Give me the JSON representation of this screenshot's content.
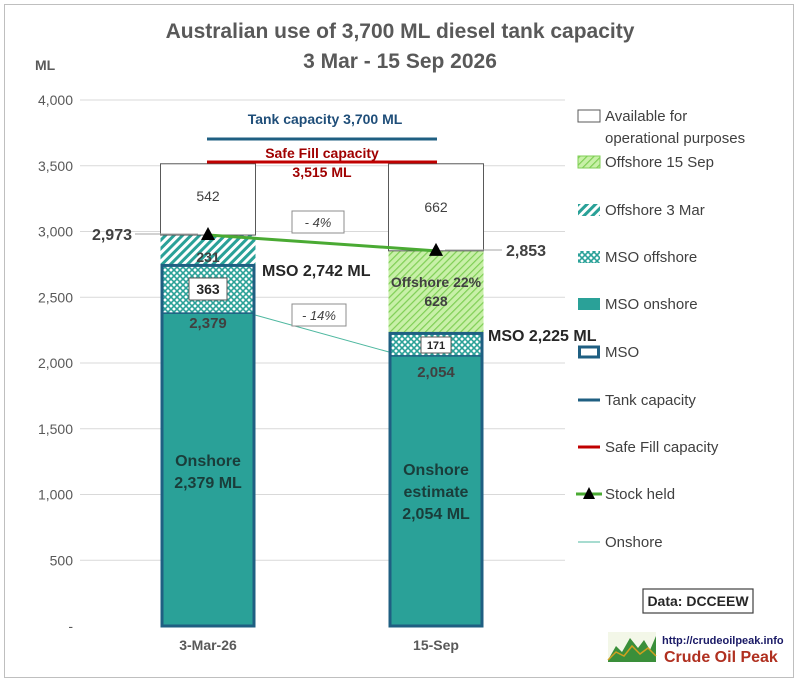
{
  "chart_data": {
    "type": "bar",
    "title_line1": "Australian use of 3,700 ML diesel tank capacity",
    "title_line2": "3 Mar - 15 Sep 2026",
    "ylabel": "ML",
    "ylim": [
      0,
      4000
    ],
    "yticks": [
      "-",
      "500",
      "1,000",
      "1,500",
      "2,000",
      "2,500",
      "3,000",
      "3,500",
      "4,000"
    ],
    "ytick_values": [
      0,
      500,
      1000,
      1500,
      2000,
      2500,
      3000,
      3500,
      4000
    ],
    "categories": [
      "3-Mar-26",
      "15-Sep"
    ],
    "grid": true,
    "legend_position": "right",
    "series": [
      {
        "name": "MSO onshore",
        "values": [
          2379,
          2054
        ]
      },
      {
        "name": "MSO offshore",
        "values": [
          363,
          171
        ]
      },
      {
        "name": "Offshore 3 Mar",
        "values": [
          231,
          0
        ]
      },
      {
        "name": "Offshore 15 Sep",
        "values": [
          0,
          628
        ]
      },
      {
        "name": "Available for operational purposes",
        "values": [
          542,
          662
        ]
      }
    ],
    "stock_held": [
      2973,
      2853
    ],
    "tank_capacity": 3700,
    "safe_fill_capacity": 3515,
    "mso_totals": [
      2742,
      2225
    ],
    "labels": {
      "bar1_onshore_line1": "Onshore",
      "bar1_onshore_line2": "2,379 ML",
      "bar2_onshore_line1": "Onshore",
      "bar2_onshore_line2": "estimate",
      "bar2_onshore_line3": "2,054 ML",
      "bar1_onshore_value": "2,379",
      "bar2_onshore_value": "2,054",
      "bar1_mso_offshore": "363",
      "bar2_mso_offshore": "171",
      "bar1_offshore": "231",
      "bar2_offshore_line1": "Offshore 22%",
      "bar2_offshore_line2": "628",
      "bar1_available": "542",
      "bar2_available": "662",
      "bar1_stock": "2,973",
      "bar2_stock": "2,853",
      "bar1_mso": "MSO 2,742 ML",
      "bar2_mso": "MSO 2,225 ML",
      "tank_capacity": "Tank capacity 3,700 ML",
      "safe_fill_line1": "Safe Fill capacity",
      "safe_fill_line2": "3,515 ML",
      "stock_change": "- 4%",
      "onshore_change": "- 14%"
    },
    "legend": [
      "Available for",
      "operational purposes",
      "Offshore 15 Sep",
      "Offshore 3 Mar",
      "MSO offshore",
      "MSO onshore",
      "MSO",
      "Tank capacity",
      "Safe Fill capacity",
      "Stock held",
      "Onshore"
    ],
    "source": "Data: DCCEEW"
  },
  "logo": {
    "url_text": "http://crudeoilpeak.info",
    "name": "Crude Oil Peak"
  },
  "colors": {
    "onshore": "#2aa198",
    "mso_border": "#1f5f82",
    "offshore_green": "#b9ee99",
    "tank_line": "#1f5f82",
    "safe_fill_line": "#c00000",
    "stock_line": "#4aaa33",
    "hatch": "#2aa198",
    "text": "#404040"
  }
}
